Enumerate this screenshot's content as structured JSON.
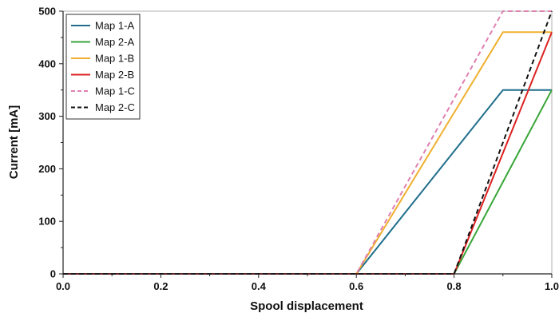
{
  "chart_data": {
    "type": "line",
    "xlabel": "Spool displacement",
    "ylabel": "Current [mA]",
    "xlim": [
      0,
      1
    ],
    "ylim": [
      0,
      500
    ],
    "xticks": [
      "0.0",
      "0.2",
      "0.4",
      "0.6",
      "0.8",
      "1.0"
    ],
    "yticks": [
      "0",
      "100",
      "200",
      "300",
      "400",
      "500"
    ],
    "grid": true,
    "legend_position": "top-left",
    "series": [
      {
        "name": "Map 1-A",
        "color": "#1f6e8c",
        "dash": "solid",
        "x": [
          0,
          0.6,
          0.9,
          1.0
        ],
        "y": [
          0,
          0,
          350,
          350
        ]
      },
      {
        "name": "Map 2-A",
        "color": "#3aa63a",
        "dash": "solid",
        "x": [
          0,
          0.8,
          1.0
        ],
        "y": [
          0,
          0,
          350
        ]
      },
      {
        "name": "Map 1-B",
        "color": "#f0b030",
        "dash": "solid",
        "x": [
          0,
          0.6,
          0.9,
          1.0
        ],
        "y": [
          0,
          0,
          460,
          460
        ]
      },
      {
        "name": "Map 2-B",
        "color": "#dd2222",
        "dash": "solid",
        "x": [
          0,
          0.8,
          1.0
        ],
        "y": [
          0,
          0,
          460
        ]
      },
      {
        "name": "Map 1-C",
        "color": "#e080b0",
        "dash": "dashed",
        "x": [
          0,
          0.6,
          0.9,
          1.0
        ],
        "y": [
          0,
          0,
          500,
          500
        ]
      },
      {
        "name": "Map 2-C",
        "color": "#111111",
        "dash": "dashed",
        "x": [
          0,
          0.8,
          1.0
        ],
        "y": [
          0,
          0,
          500
        ]
      }
    ]
  }
}
